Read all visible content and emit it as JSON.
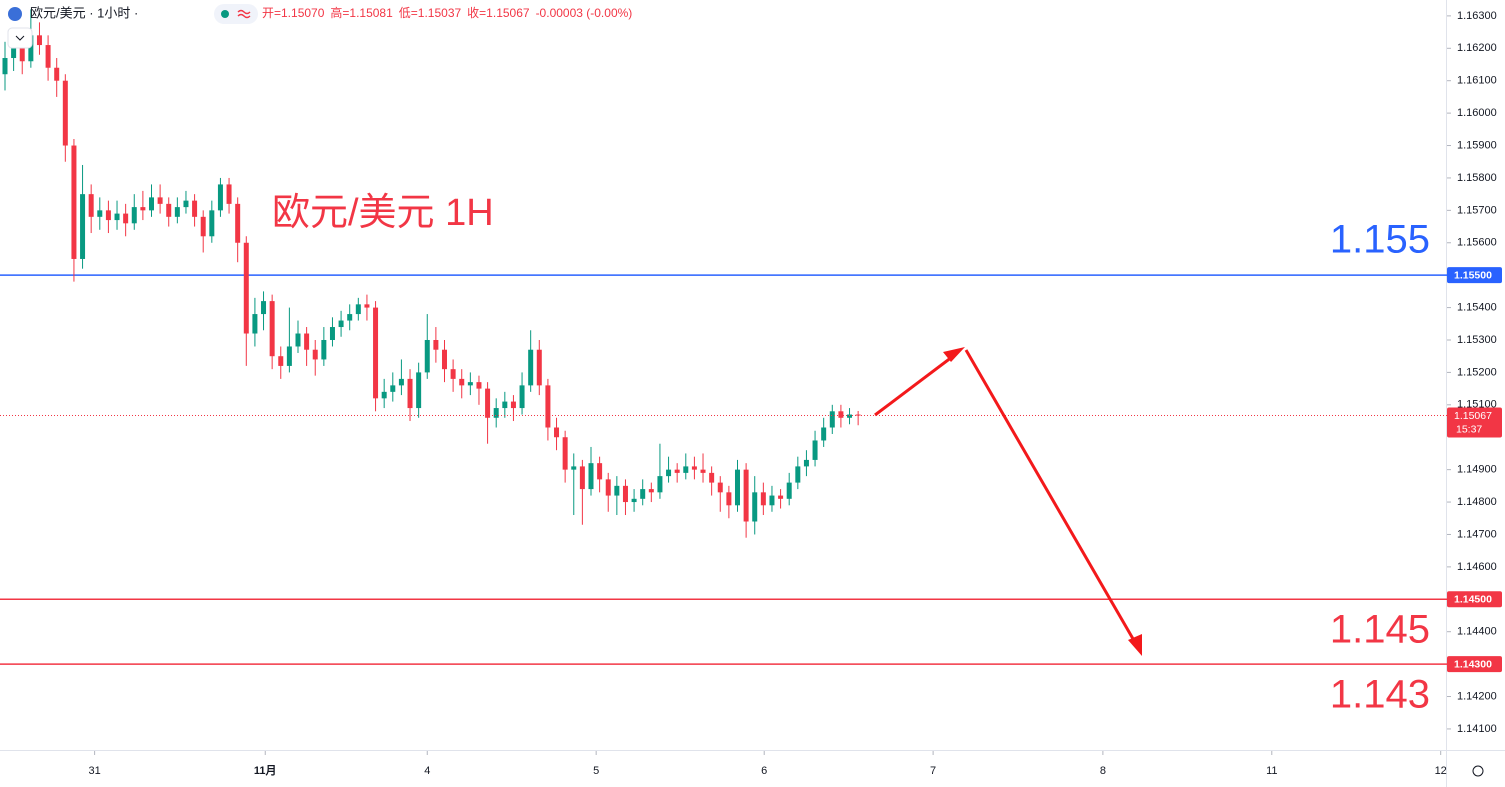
{
  "chart_data": {
    "type": "candlestick",
    "title": "欧元/美元 1H",
    "header": {
      "symbol": "欧元/美元 · 1小时 ·",
      "fields": [
        "开=1.15070",
        "高=1.15081",
        "低=1.15037",
        "收=1.15067",
        "-0.00003 (-0.00%)"
      ]
    },
    "up_color": "#089981",
    "down_color": "#f23645",
    "ohlc": [
      [
        1.1612,
        1.1622,
        1.1607,
        1.1617
      ],
      [
        1.1617,
        1.1626,
        1.1613,
        1.162
      ],
      [
        1.162,
        1.1623,
        1.1612,
        1.1616
      ],
      [
        1.1616,
        1.1632,
        1.1614,
        1.1624
      ],
      [
        1.1624,
        1.1628,
        1.1618,
        1.1621
      ],
      [
        1.1621,
        1.1624,
        1.161,
        1.1614
      ],
      [
        1.1614,
        1.1617,
        1.1605,
        1.161
      ],
      [
        1.161,
        1.1612,
        1.1585,
        1.159
      ],
      [
        1.159,
        1.1592,
        1.1548,
        1.1555
      ],
      [
        1.1555,
        1.1584,
        1.1552,
        1.1575
      ],
      [
        1.1575,
        1.1578,
        1.1563,
        1.1568
      ],
      [
        1.1568,
        1.1574,
        1.1564,
        1.157
      ],
      [
        1.157,
        1.1573,
        1.1563,
        1.1567
      ],
      [
        1.1567,
        1.1573,
        1.1564,
        1.1569
      ],
      [
        1.1569,
        1.1572,
        1.1562,
        1.1566
      ],
      [
        1.1566,
        1.1575,
        1.1564,
        1.1571
      ],
      [
        1.1571,
        1.1576,
        1.1567,
        1.157
      ],
      [
        1.157,
        1.1578,
        1.1568,
        1.1574
      ],
      [
        1.1574,
        1.1578,
        1.1569,
        1.1572
      ],
      [
        1.1572,
        1.1574,
        1.1565,
        1.1568
      ],
      [
        1.1568,
        1.1574,
        1.1566,
        1.1571
      ],
      [
        1.1571,
        1.1576,
        1.1569,
        1.1573
      ],
      [
        1.1573,
        1.1575,
        1.1565,
        1.1568
      ],
      [
        1.1568,
        1.157,
        1.1557,
        1.1562
      ],
      [
        1.1562,
        1.1573,
        1.156,
        1.157
      ],
      [
        1.157,
        1.158,
        1.1568,
        1.1578
      ],
      [
        1.1578,
        1.158,
        1.1569,
        1.1572
      ],
      [
        1.1572,
        1.1574,
        1.1554,
        1.156
      ],
      [
        1.156,
        1.1562,
        1.1522,
        1.1532
      ],
      [
        1.1532,
        1.1543,
        1.1528,
        1.1538
      ],
      [
        1.1538,
        1.1545,
        1.1533,
        1.1542
      ],
      [
        1.1542,
        1.1544,
        1.1521,
        1.1525
      ],
      [
        1.1525,
        1.1528,
        1.1518,
        1.1522
      ],
      [
        1.1522,
        1.154,
        1.152,
        1.1528
      ],
      [
        1.1528,
        1.1536,
        1.1526,
        1.1532
      ],
      [
        1.1532,
        1.1534,
        1.1522,
        1.1527
      ],
      [
        1.1527,
        1.153,
        1.1519,
        1.1524
      ],
      [
        1.1524,
        1.1534,
        1.1522,
        1.153
      ],
      [
        1.153,
        1.1537,
        1.1528,
        1.1534
      ],
      [
        1.1534,
        1.1539,
        1.1531,
        1.1536
      ],
      [
        1.1536,
        1.1541,
        1.1533,
        1.1538
      ],
      [
        1.1538,
        1.1543,
        1.1536,
        1.1541
      ],
      [
        1.1541,
        1.1544,
        1.1536,
        1.154
      ],
      [
        1.154,
        1.1542,
        1.1508,
        1.1512
      ],
      [
        1.1512,
        1.1518,
        1.1509,
        1.1514
      ],
      [
        1.1514,
        1.152,
        1.1511,
        1.1516
      ],
      [
        1.1516,
        1.1524,
        1.1513,
        1.1518
      ],
      [
        1.1518,
        1.1521,
        1.1505,
        1.1509
      ],
      [
        1.1509,
        1.1523,
        1.1506,
        1.152
      ],
      [
        1.152,
        1.1538,
        1.1518,
        1.153
      ],
      [
        1.153,
        1.1534,
        1.1523,
        1.1527
      ],
      [
        1.1527,
        1.153,
        1.1517,
        1.1521
      ],
      [
        1.1521,
        1.1524,
        1.1514,
        1.1518
      ],
      [
        1.1518,
        1.1521,
        1.1512,
        1.1516
      ],
      [
        1.1516,
        1.152,
        1.1513,
        1.1517
      ],
      [
        1.1517,
        1.1519,
        1.151,
        1.1515
      ],
      [
        1.1515,
        1.1517,
        1.1498,
        1.1506
      ],
      [
        1.1506,
        1.1512,
        1.1503,
        1.1509
      ],
      [
        1.1509,
        1.1514,
        1.1506,
        1.1511
      ],
      [
        1.1511,
        1.1513,
        1.1505,
        1.1509
      ],
      [
        1.1509,
        1.152,
        1.1507,
        1.1516
      ],
      [
        1.1516,
        1.1533,
        1.1514,
        1.1527
      ],
      [
        1.1527,
        1.153,
        1.1513,
        1.1516
      ],
      [
        1.1516,
        1.1518,
        1.1499,
        1.1503
      ],
      [
        1.1503,
        1.1506,
        1.1496,
        1.15
      ],
      [
        1.15,
        1.1502,
        1.1486,
        1.149
      ],
      [
        1.149,
        1.1495,
        1.1476,
        1.1491
      ],
      [
        1.1491,
        1.1493,
        1.1473,
        1.1484
      ],
      [
        1.1484,
        1.1497,
        1.1482,
        1.1492
      ],
      [
        1.1492,
        1.1494,
        1.1483,
        1.1487
      ],
      [
        1.1487,
        1.1489,
        1.1477,
        1.1482
      ],
      [
        1.1482,
        1.1488,
        1.1476,
        1.1485
      ],
      [
        1.1485,
        1.1487,
        1.1476,
        1.148
      ],
      [
        1.148,
        1.1484,
        1.1477,
        1.1481
      ],
      [
        1.1481,
        1.1487,
        1.1479,
        1.1484
      ],
      [
        1.1484,
        1.1486,
        1.148,
        1.1483
      ],
      [
        1.1483,
        1.1498,
        1.1481,
        1.1488
      ],
      [
        1.1488,
        1.1494,
        1.1486,
        1.149
      ],
      [
        1.149,
        1.1492,
        1.1486,
        1.1489
      ],
      [
        1.1489,
        1.1495,
        1.1487,
        1.1491
      ],
      [
        1.1491,
        1.1494,
        1.1487,
        1.149
      ],
      [
        1.149,
        1.1495,
        1.1486,
        1.1489
      ],
      [
        1.1489,
        1.1491,
        1.1482,
        1.1486
      ],
      [
        1.1486,
        1.1488,
        1.1477,
        1.1483
      ],
      [
        1.1483,
        1.1485,
        1.1475,
        1.1479
      ],
      [
        1.1479,
        1.1493,
        1.1477,
        1.149
      ],
      [
        1.149,
        1.1492,
        1.1469,
        1.1474
      ],
      [
        1.1474,
        1.1488,
        1.147,
        1.1483
      ],
      [
        1.1483,
        1.1486,
        1.1476,
        1.1479
      ],
      [
        1.1479,
        1.1485,
        1.1477,
        1.1482
      ],
      [
        1.1482,
        1.1484,
        1.1478,
        1.1481
      ],
      [
        1.1481,
        1.1489,
        1.1479,
        1.1486
      ],
      [
        1.1486,
        1.1494,
        1.1484,
        1.1491
      ],
      [
        1.1491,
        1.1496,
        1.1488,
        1.1493
      ],
      [
        1.1493,
        1.1502,
        1.1491,
        1.1499
      ],
      [
        1.1499,
        1.1506,
        1.1497,
        1.1503
      ],
      [
        1.1503,
        1.151,
        1.1501,
        1.1508
      ],
      [
        1.1508,
        1.151,
        1.1503,
        1.1506
      ],
      [
        1.1506,
        1.1509,
        1.1504,
        1.1507
      ],
      [
        1.1507,
        1.15081,
        1.15037,
        1.15067
      ]
    ],
    "xlim": [
      -0.58,
      167.1
    ],
    "xticks": [
      {
        "value": 10.4,
        "label": "31"
      },
      {
        "value": 30.2,
        "label": "11月"
      },
      {
        "value": 49,
        "label": "4"
      },
      {
        "value": 68.6,
        "label": "5"
      },
      {
        "value": 88.1,
        "label": "6"
      },
      {
        "value": 107.7,
        "label": "7"
      },
      {
        "value": 127.4,
        "label": "8"
      },
      {
        "value": 147,
        "label": "11"
      },
      {
        "value": 166.6,
        "label": "12"
      }
    ],
    "ylim": [
      1.14035,
      1.16349
    ],
    "yticks": [
      {
        "value": 1.163,
        "label": "1.16300"
      },
      {
        "value": 1.162,
        "label": "1.16200"
      },
      {
        "value": 1.161,
        "label": "1.16100"
      },
      {
        "value": 1.16,
        "label": "1.16000"
      },
      {
        "value": 1.159,
        "label": "1.15900"
      },
      {
        "value": 1.158,
        "label": "1.15800"
      },
      {
        "value": 1.157,
        "label": "1.15700"
      },
      {
        "value": 1.156,
        "label": "1.15600"
      },
      {
        "value": 1.154,
        "label": "1.15400"
      },
      {
        "value": 1.153,
        "label": "1.15300"
      },
      {
        "value": 1.152,
        "label": "1.15200"
      },
      {
        "value": 1.151,
        "label": "1.15100"
      },
      {
        "value": 1.149,
        "label": "1.14900"
      },
      {
        "value": 1.148,
        "label": "1.14800"
      },
      {
        "value": 1.147,
        "label": "1.14700"
      },
      {
        "value": 1.146,
        "label": "1.14600"
      },
      {
        "value": 1.144,
        "label": "1.14400"
      },
      {
        "value": 1.142,
        "label": "1.14200"
      },
      {
        "value": 1.141,
        "label": "1.14100"
      }
    ],
    "hlines": [
      {
        "value": 1.155,
        "label": "1.15500",
        "color": "#2962ff"
      },
      {
        "value": 1.145,
        "label": "1.14500",
        "color": "#f23645"
      },
      {
        "value": 1.143,
        "label": "1.14300",
        "color": "#f23645"
      }
    ],
    "last": {
      "value": 1.15067,
      "label": "1.15067",
      "countdown": "15:37",
      "color": "#f23645"
    },
    "annotations": [
      "1.155",
      "1.145",
      "1.143"
    ]
  }
}
